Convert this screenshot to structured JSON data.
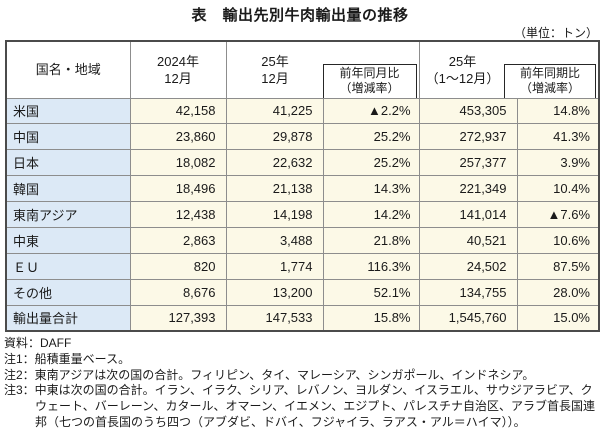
{
  "title": "表　輸出先別牛肉輸出量の推移",
  "unit_label": "（単位：トン）",
  "colors": {
    "label_column_bg": "#dce9f6",
    "data_cell_bg": "#fcf9e7",
    "inner_border": "#8d8d8d",
    "outer_border": "#4b4b4b",
    "boxed_header_border": "#262626"
  },
  "table": {
    "header": {
      "country": "国名・地域",
      "dec2024_l1": "2024年",
      "dec2024_l2": "12月",
      "dec25_l1": "25年",
      "dec25_l2": "12月",
      "mom_l1": "前年同月比",
      "mom_l2": "（増減率）",
      "year25_l1": "25年",
      "year25_l2": "（1～12月）",
      "yoy_l1": "前年同期比",
      "yoy_l2": "（増減率）"
    },
    "rows": [
      {
        "label": "米国",
        "dec2024": "42,158",
        "dec25": "41,225",
        "mom": "▲2.2%",
        "total25": "453,305",
        "yoy": "14.8%"
      },
      {
        "label": "中国",
        "dec2024": "23,860",
        "dec25": "29,878",
        "mom": "25.2%",
        "total25": "272,937",
        "yoy": "41.3%"
      },
      {
        "label": "日本",
        "dec2024": "18,082",
        "dec25": "22,632",
        "mom": "25.2%",
        "total25": "257,377",
        "yoy": "3.9%"
      },
      {
        "label": "韓国",
        "dec2024": "18,496",
        "dec25": "21,138",
        "mom": "14.3%",
        "total25": "221,349",
        "yoy": "10.4%"
      },
      {
        "label": "東南アジア",
        "dec2024": "12,438",
        "dec25": "14,198",
        "mom": "14.2%",
        "total25": "141,014",
        "yoy": "▲7.6%"
      },
      {
        "label": "中東",
        "dec2024": "2,863",
        "dec25": "3,488",
        "mom": "21.8%",
        "total25": "40,521",
        "yoy": "10.6%"
      },
      {
        "label": "ＥＵ",
        "dec2024": "820",
        "dec25": "1,774",
        "mom": "116.3%",
        "total25": "24,502",
        "yoy": "87.5%"
      },
      {
        "label": "その他",
        "dec2024": "8,676",
        "dec25": "13,200",
        "mom": "52.1%",
        "total25": "134,755",
        "yoy": "28.0%"
      },
      {
        "label": "輸出量合計",
        "dec2024": "127,393",
        "dec25": "147,533",
        "mom": "15.8%",
        "total25": "1,545,760",
        "yoy": "15.0%"
      }
    ]
  },
  "notes": {
    "source": "資料：DAFF",
    "note1": "注1：船積重量ベース。",
    "note2": "注2：東南アジアは次の国の合計。フィリピン、タイ、マレーシア、シンガポール、インドネシア。",
    "note3": "注3：中東は次の国の合計。イラン、イラク、シリア、レバノン、ヨルダン、イスラエル、サウジアラビア、クウェート、バーレーン、カタール、オマーン、イエメン、エジプト、パレスチナ自治区、アラブ首長国連邦（七つの首長国のうち四つ（アブダビ、ドバイ、フジャイラ、ラアス・アル＝ハイマ））。"
  }
}
